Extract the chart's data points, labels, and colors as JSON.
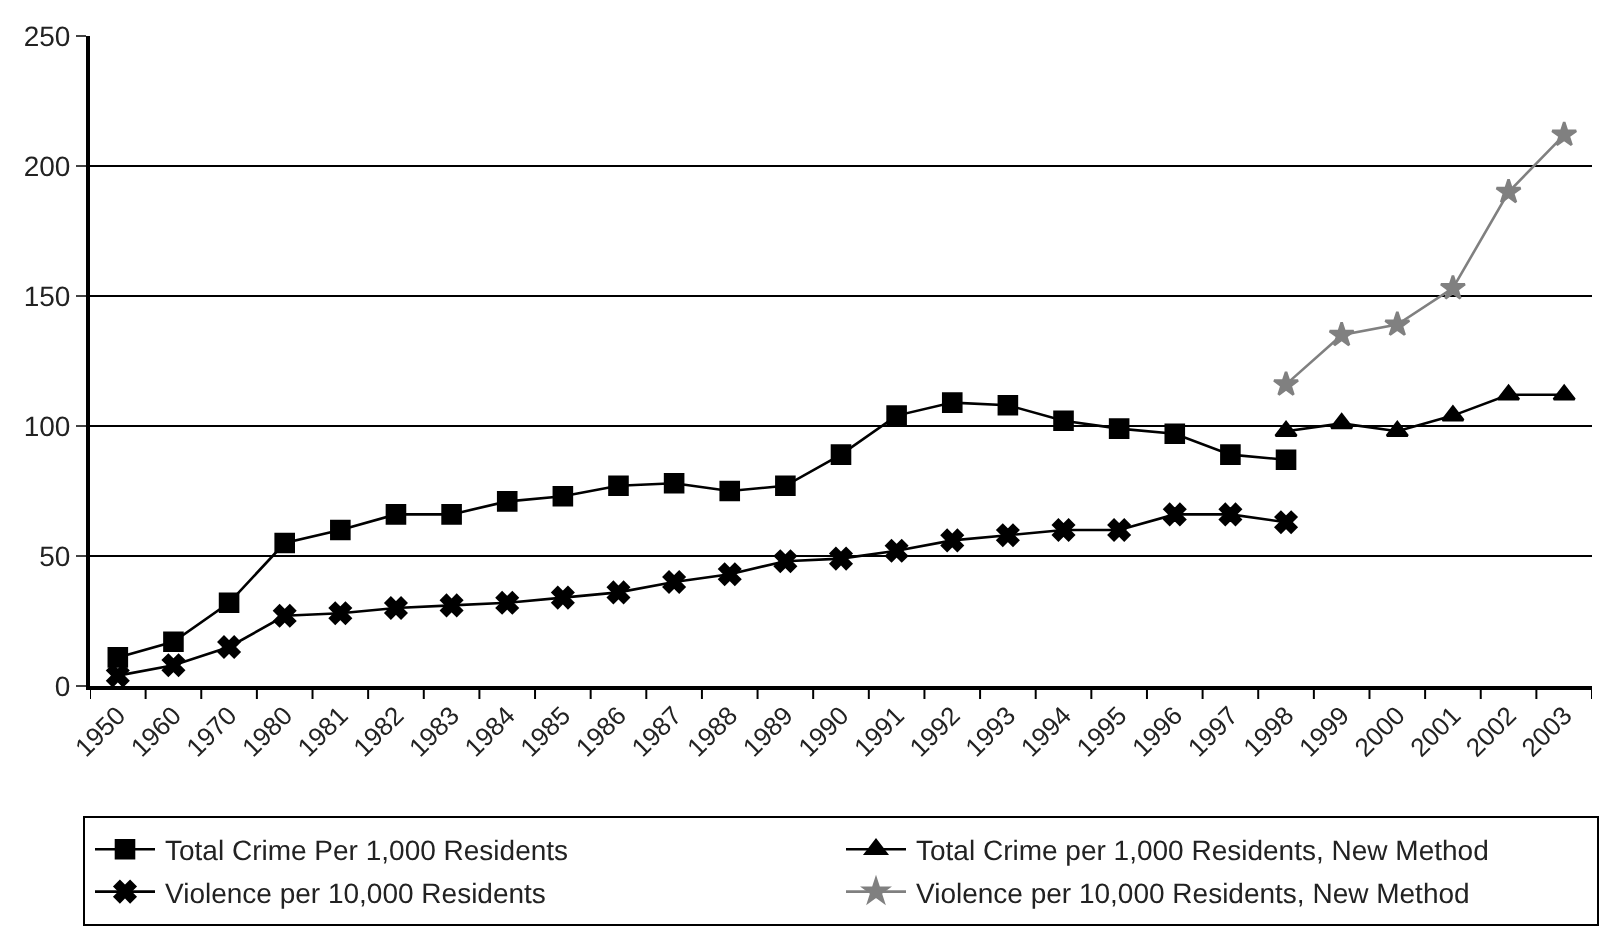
{
  "chart_data": {
    "type": "line",
    "categories": [
      "1950",
      "1960",
      "1970",
      "1980",
      "1981",
      "1982",
      "1983",
      "1984",
      "1985",
      "1986",
      "1987",
      "1988",
      "1989",
      "1990",
      "1991",
      "1992",
      "1993",
      "1994",
      "1995",
      "1996",
      "1997",
      "1998",
      "1999",
      "2000",
      "2001",
      "2002",
      "2003"
    ],
    "series": [
      {
        "name": "Total Crime Per 1,000 Residents",
        "color": "#000000",
        "marker": "square",
        "values": [
          11,
          17,
          32,
          55,
          60,
          66,
          66,
          71,
          73,
          77,
          78,
          75,
          77,
          89,
          104,
          109,
          108,
          102,
          99,
          97,
          89,
          87,
          null,
          null,
          null,
          null,
          null
        ]
      },
      {
        "name": "Total Crime per 1,000 Residents, New Method",
        "color": "#000000",
        "marker": "triangle",
        "values": [
          null,
          null,
          null,
          null,
          null,
          null,
          null,
          null,
          null,
          null,
          null,
          null,
          null,
          null,
          null,
          null,
          null,
          null,
          null,
          null,
          null,
          98,
          101,
          98,
          104,
          112,
          112
        ]
      },
      {
        "name": "Violence per 10,000 Residents",
        "color": "#000000",
        "marker": "cross",
        "values": [
          4,
          8,
          15,
          27,
          28,
          30,
          31,
          32,
          34,
          36,
          40,
          43,
          48,
          49,
          52,
          56,
          58,
          60,
          60,
          66,
          66,
          63,
          null,
          null,
          null,
          null,
          null
        ]
      },
      {
        "name": "Violence per 10,000 Residents, New Method",
        "color": "#808080",
        "marker": "star",
        "values": [
          null,
          null,
          null,
          null,
          null,
          null,
          null,
          null,
          null,
          null,
          null,
          null,
          null,
          null,
          null,
          null,
          null,
          null,
          null,
          null,
          null,
          116,
          135,
          139,
          153,
          190,
          212
        ]
      }
    ],
    "ylim": [
      0,
      250
    ],
    "yticks": [
      0,
      50,
      100,
      150,
      200,
      250
    ],
    "grid": "y",
    "legend": "bottom",
    "line_style": "solid"
  }
}
